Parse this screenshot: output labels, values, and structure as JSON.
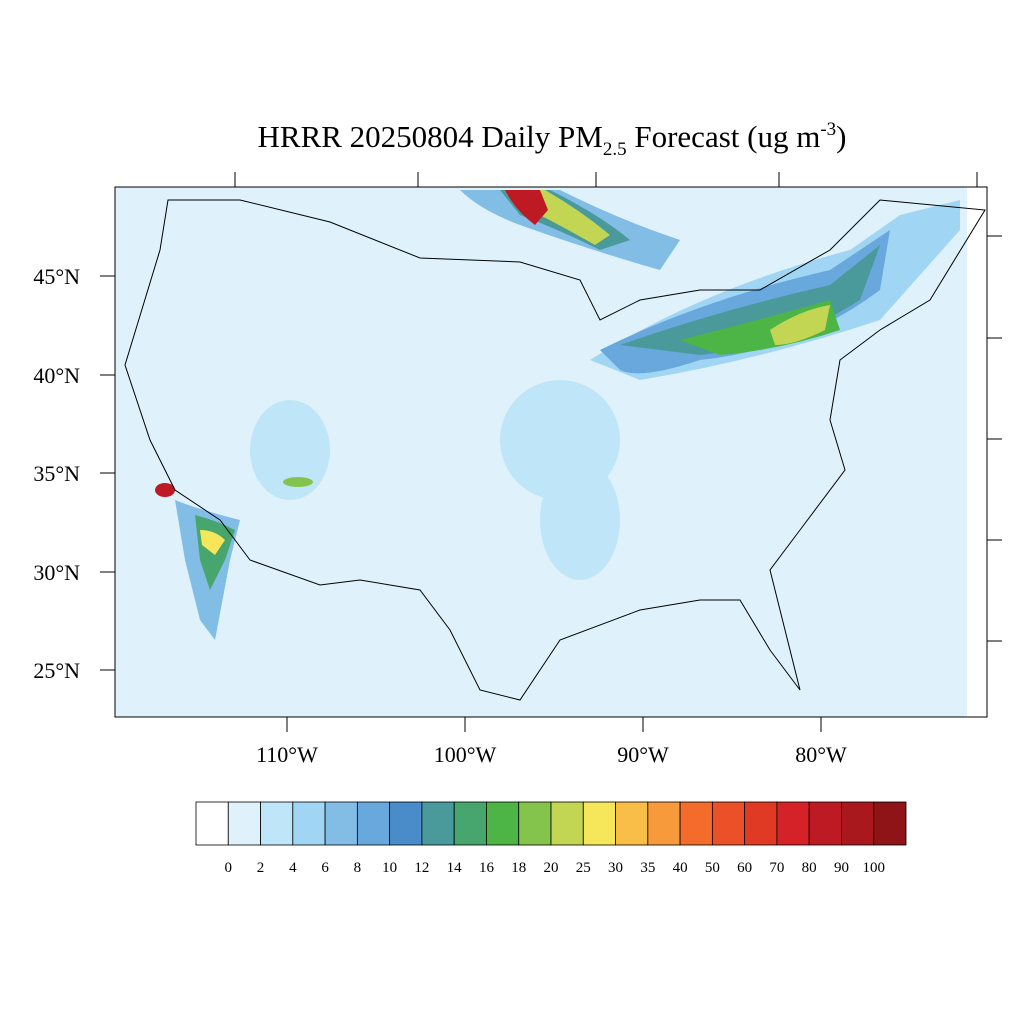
{
  "title": {
    "main": "HRRR 20250804 Daily PM",
    "subscript": "2.5",
    "after": " Forecast (ug m",
    "superscript": "-3",
    "end": ")"
  },
  "map": {
    "lat_labels": [
      "45°N",
      "40°N",
      "35°N",
      "30°N",
      "25°N"
    ],
    "lon_labels": [
      "110°W",
      "100°W",
      "90°W",
      "80°W"
    ]
  },
  "colorbar": {
    "levels": [
      0,
      2,
      4,
      6,
      8,
      10,
      12,
      14,
      16,
      18,
      20,
      25,
      30,
      35,
      40,
      50,
      60,
      70,
      80,
      90,
      100
    ],
    "colors": [
      "#ffffff",
      "#dff2fb",
      "#bfe6f8",
      "#a0d6f4",
      "#82bde6",
      "#68a8dc",
      "#4a8cca",
      "#4a9a9c",
      "#46a66e",
      "#4db446",
      "#84c44c",
      "#c3d654",
      "#f6e65a",
      "#f8be48",
      "#f69a3c",
      "#f46c2c",
      "#ec5028",
      "#e03a24",
      "#d42228",
      "#be1a24",
      "#a8181c",
      "#8e1418"
    ]
  }
}
